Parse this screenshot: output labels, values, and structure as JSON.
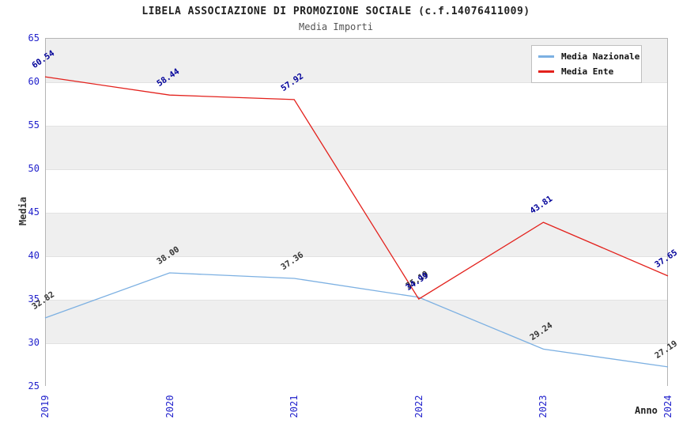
{
  "chart_data": {
    "type": "line",
    "title": "LIBELA ASSOCIAZIONE DI PROMOZIONE SOCIALE (c.f.14076411009)",
    "subtitle": "Media Importi",
    "xlabel": "Anno",
    "ylabel": "Media",
    "x": [
      "2019",
      "2020",
      "2021",
      "2022",
      "2023",
      "2024"
    ],
    "series": [
      {
        "name": "Media Nazionale",
        "color": "#7cb0e2",
        "label_color": "#333333",
        "values": [
          32.82,
          38.0,
          37.36,
          35.19,
          29.24,
          27.19
        ]
      },
      {
        "name": "Media Ente",
        "color": "#e3211c",
        "label_color": "#000099",
        "values": [
          60.54,
          58.44,
          57.92,
          34.99,
          43.81,
          37.65
        ]
      }
    ],
    "ylim": [
      25,
      65
    ],
    "ytick_step": 5,
    "yticks": [
      25,
      30,
      35,
      40,
      45,
      50,
      55,
      60,
      65
    ],
    "grid": "horizontal-bands",
    "band_colors": [
      "#efefef",
      "#ffffff"
    ],
    "axis_tick_color": "#2222cc",
    "legend_position": "top-right",
    "note": "labels for 2022 overlap in original render"
  }
}
